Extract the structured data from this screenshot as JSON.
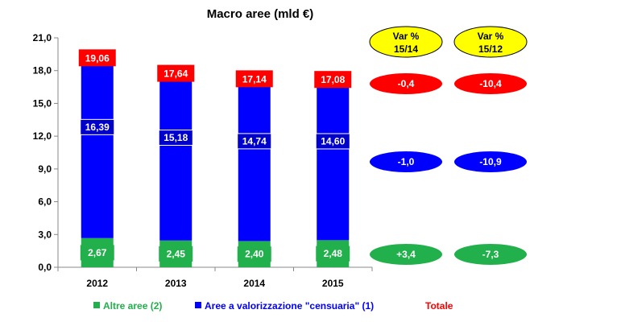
{
  "chart_data": {
    "type": "bar",
    "stacked": true,
    "title": "Macro aree (mld €)",
    "categories": [
      "2012",
      "2013",
      "2014",
      "2015"
    ],
    "series": [
      {
        "name": "Altre aree (2)",
        "color": "#22b04c",
        "values": [
          2.67,
          2.45,
          2.4,
          2.48
        ],
        "labels": [
          "2,67",
          "2,45",
          "2,40",
          "2,48"
        ]
      },
      {
        "name": "Aree a valorizzazione \"censuaria\" (1)",
        "color": "#0000ff",
        "values": [
          16.39,
          15.18,
          14.74,
          14.6
        ],
        "labels": [
          "16,39",
          "15,18",
          "14,74",
          "14,60"
        ]
      }
    ],
    "totals": {
      "name": "Totale",
      "color": "#ff0000",
      "values": [
        19.06,
        17.64,
        17.14,
        17.08
      ],
      "labels": [
        "19,06",
        "17,64",
        "17,14",
        "17,08"
      ]
    },
    "ylim": [
      0,
      21
    ],
    "yticks": [
      "0,0",
      "3,0",
      "6,0",
      "9,0",
      "12,0",
      "15,0",
      "18,0",
      "21,0"
    ],
    "grid": false,
    "legend_position": "bottom"
  },
  "variations": {
    "headers": [
      {
        "line1": "Var %",
        "line2": "15/14"
      },
      {
        "line1": "Var %",
        "line2": "15/12"
      }
    ],
    "header_color": "#ffff00",
    "rows": [
      {
        "series": "Totale",
        "color": "#ff0000",
        "values": [
          "-0,4",
          "-10,4"
        ]
      },
      {
        "series": "Aree a valorizzazione \"censuaria\" (1)",
        "color": "#0000ff",
        "values": [
          "-1,0",
          "-10,9"
        ]
      },
      {
        "series": "Altre aree (2)",
        "color": "#22b04c",
        "values": [
          "+3,4",
          "-7,3"
        ]
      }
    ]
  }
}
